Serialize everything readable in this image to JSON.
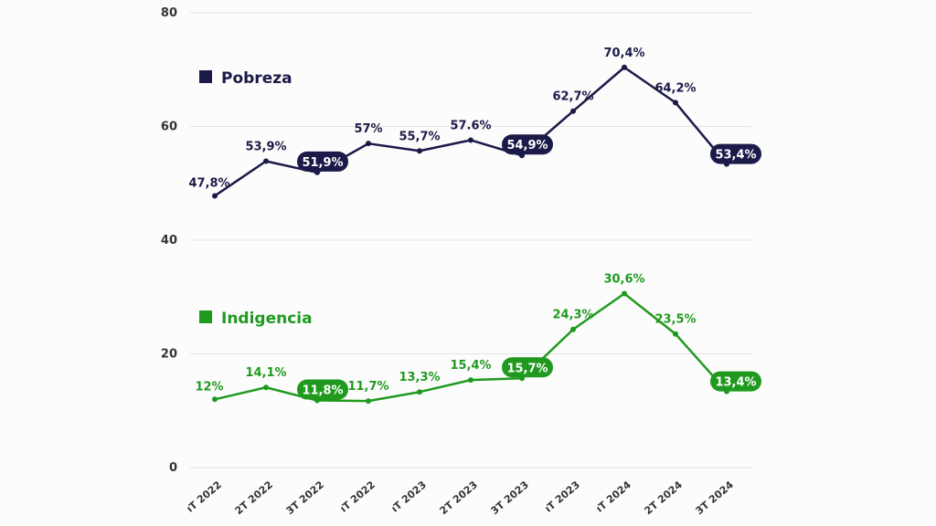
{
  "chart_data": {
    "type": "line",
    "categories": [
      "1T 2022",
      "2T 2022",
      "3T 2022",
      "4T 2022",
      "1T 2023",
      "2T 2023",
      "3T 2023",
      "4T 2023",
      "1T 2024",
      "2T 2024",
      "3T 2024"
    ],
    "x_tick_labels": [
      "ıT 2022",
      "2T 2022",
      "3T 2022",
      "ıT 2022",
      "ıT 2023",
      "2T 2023",
      "3T 2023",
      "ıT 2023",
      "ıT 2024",
      "2T 2024",
      "3T 2024"
    ],
    "yticks": [
      0,
      20,
      40,
      60,
      80
    ],
    "ylim": [
      0,
      80
    ],
    "grid": true,
    "series": [
      {
        "name": "Pobreza",
        "color": "#1b1a48",
        "values": [
          47.8,
          53.9,
          51.9,
          57.0,
          55.7,
          57.6,
          54.9,
          62.7,
          70.4,
          64.2,
          53.4
        ],
        "labels": [
          "47,8%",
          "53,9%",
          "51,9%",
          "57%",
          "55,7%",
          "57.6%",
          "54,9%",
          "62,7%",
          "70,4%",
          "64,2%",
          "53,4%"
        ],
        "highlighted": [
          2,
          6,
          10
        ]
      },
      {
        "name": "Indigencia",
        "color": "#1f9a1f",
        "values": [
          12.0,
          14.1,
          11.8,
          11.7,
          13.3,
          15.4,
          15.7,
          24.3,
          30.6,
          23.5,
          13.4
        ],
        "labels": [
          "12%",
          "14,1%",
          "11,8%",
          "11,7%",
          "13,3%",
          "15,4%",
          "15,7%",
          "24,3%",
          "30,6%",
          "23,5%",
          "13,4%"
        ],
        "highlighted": [
          2,
          6,
          10
        ]
      }
    ]
  }
}
